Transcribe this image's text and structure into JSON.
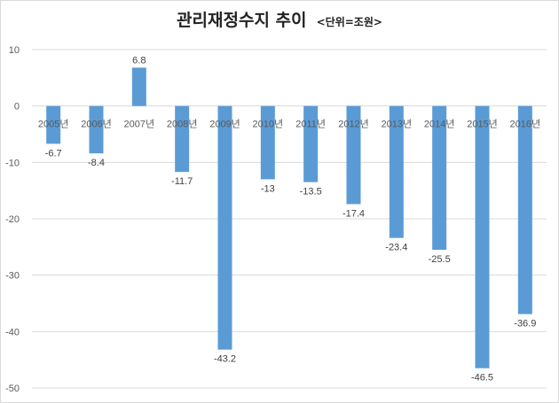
{
  "chart_data": {
    "type": "bar",
    "title": "관리재정수지 추이",
    "unit_label": "<단위=조원>",
    "categories": [
      "2005년",
      "2006년",
      "2007년",
      "2008년",
      "2009년",
      "2010년",
      "2011년",
      "2012년",
      "2013년",
      "2014년",
      "2015년",
      "2016년"
    ],
    "values": [
      -6.7,
      -8.4,
      6.8,
      -11.7,
      -43.2,
      -13,
      -13.5,
      -17.4,
      -23.4,
      -25.5,
      -46.5,
      -36.9
    ],
    "data_labels": [
      "-6.7",
      "-8.4",
      "6.8",
      "-11.7",
      "-43.2",
      "-13",
      "-13.5",
      "-17.4",
      "-23.4",
      "-25.5",
      "-46.5",
      "-36.9"
    ],
    "ylim": [
      -50,
      10
    ],
    "yticks": [
      10,
      0,
      -10,
      -20,
      -30,
      -40,
      -50
    ],
    "grid": true,
    "legend": "none",
    "colors": {
      "bar": "#5b9bd5",
      "grid": "#d9d9d9",
      "axis_text": "#595959"
    }
  }
}
